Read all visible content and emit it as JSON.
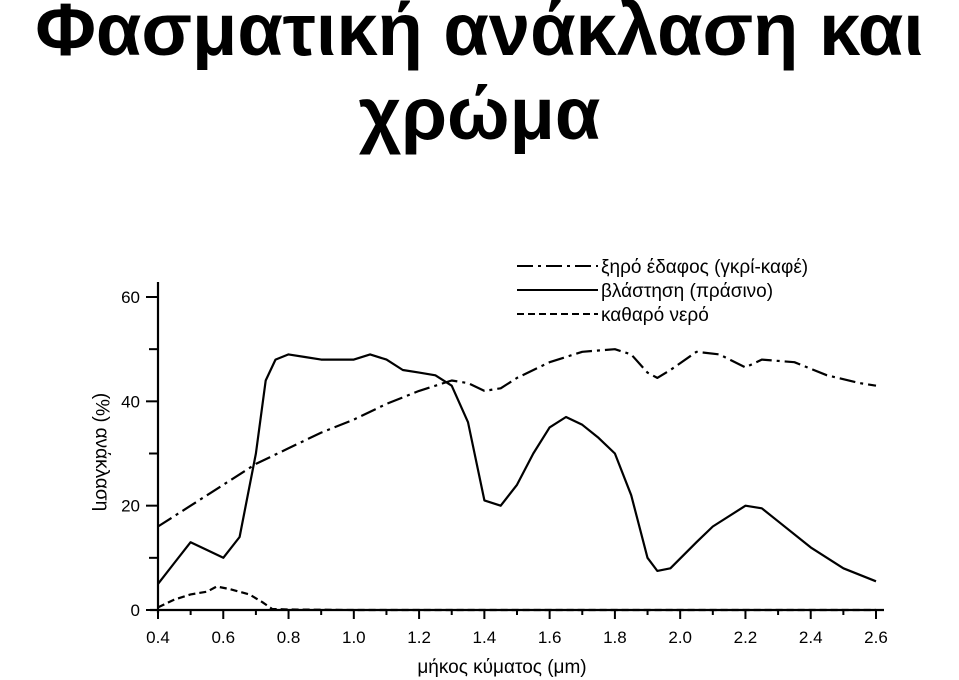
{
  "title": {
    "line1": "Φασματική ανάκλαση και",
    "line2": "χρώμα"
  },
  "chart_data": {
    "type": "line",
    "xlabel": "μήκος κύματος (μm)",
    "ylabel": "(%) ανάκλαση",
    "xlim": [
      0.4,
      2.6
    ],
    "ylim": [
      0,
      60
    ],
    "xticks": [
      0.4,
      0.6,
      0.8,
      1.0,
      1.2,
      1.4,
      1.6,
      1.8,
      2.0,
      2.2,
      2.4,
      2.6
    ],
    "xtick_labels": [
      "0.4",
      "0.6",
      "0.8",
      "1.0",
      "1.2",
      "1.4",
      "1.6",
      "1.8",
      "2.0",
      "2.2",
      "2.4",
      "2.6"
    ],
    "yticks": [
      0,
      20,
      40,
      60
    ],
    "ytick_labels": [
      "0",
      "20",
      "40",
      "60"
    ],
    "grid": false,
    "legend_position": "top-right",
    "series": [
      {
        "name": "ξηρό έδαφος (γκρί-καφέ)",
        "style": "dash-dot",
        "points": [
          [
            0.4,
            16
          ],
          [
            0.5,
            20
          ],
          [
            0.6,
            24
          ],
          [
            0.7,
            28
          ],
          [
            0.8,
            31
          ],
          [
            0.9,
            34
          ],
          [
            1.0,
            36.5
          ],
          [
            1.1,
            39.5
          ],
          [
            1.2,
            42
          ],
          [
            1.3,
            44
          ],
          [
            1.35,
            43.5
          ],
          [
            1.4,
            42
          ],
          [
            1.45,
            42.5
          ],
          [
            1.5,
            44.5
          ],
          [
            1.6,
            47.5
          ],
          [
            1.7,
            49.5
          ],
          [
            1.8,
            50
          ],
          [
            1.85,
            49
          ],
          [
            1.9,
            45.5
          ],
          [
            1.93,
            44.5
          ],
          [
            1.97,
            46
          ],
          [
            2.05,
            49.5
          ],
          [
            2.12,
            49
          ],
          [
            2.2,
            46.5
          ],
          [
            2.25,
            48
          ],
          [
            2.35,
            47.5
          ],
          [
            2.45,
            45
          ],
          [
            2.55,
            43.5
          ],
          [
            2.6,
            43
          ]
        ]
      },
      {
        "name": "βλάστηση (πράσινο)",
        "style": "solid",
        "points": [
          [
            0.4,
            5
          ],
          [
            0.45,
            9
          ],
          [
            0.5,
            13
          ],
          [
            0.55,
            11.5
          ],
          [
            0.6,
            10
          ],
          [
            0.65,
            14
          ],
          [
            0.7,
            30
          ],
          [
            0.73,
            44
          ],
          [
            0.76,
            48
          ],
          [
            0.8,
            49
          ],
          [
            0.85,
            48.5
          ],
          [
            0.9,
            48
          ],
          [
            0.95,
            48
          ],
          [
            1.0,
            48
          ],
          [
            1.05,
            49
          ],
          [
            1.1,
            48
          ],
          [
            1.15,
            46
          ],
          [
            1.2,
            45.5
          ],
          [
            1.25,
            45
          ],
          [
            1.3,
            43
          ],
          [
            1.35,
            36
          ],
          [
            1.4,
            21
          ],
          [
            1.45,
            20
          ],
          [
            1.5,
            24
          ],
          [
            1.55,
            30
          ],
          [
            1.6,
            35
          ],
          [
            1.65,
            37
          ],
          [
            1.7,
            35.5
          ],
          [
            1.75,
            33
          ],
          [
            1.8,
            30
          ],
          [
            1.85,
            22
          ],
          [
            1.9,
            10
          ],
          [
            1.93,
            7.5
          ],
          [
            1.97,
            8
          ],
          [
            2.05,
            13
          ],
          [
            2.1,
            16
          ],
          [
            2.2,
            20
          ],
          [
            2.25,
            19.5
          ],
          [
            2.3,
            17
          ],
          [
            2.4,
            12
          ],
          [
            2.5,
            8
          ],
          [
            2.6,
            5.5
          ]
        ]
      },
      {
        "name": "καθαρό νερό",
        "style": "dashed",
        "points": [
          [
            0.4,
            0.5
          ],
          [
            0.45,
            2
          ],
          [
            0.5,
            3
          ],
          [
            0.55,
            3.5
          ],
          [
            0.58,
            4.5
          ],
          [
            0.62,
            4
          ],
          [
            0.68,
            3
          ],
          [
            0.72,
            1.5
          ],
          [
            0.75,
            0.2
          ],
          [
            0.8,
            0.1
          ],
          [
            1.0,
            0
          ],
          [
            2.6,
            0
          ]
        ]
      }
    ]
  }
}
